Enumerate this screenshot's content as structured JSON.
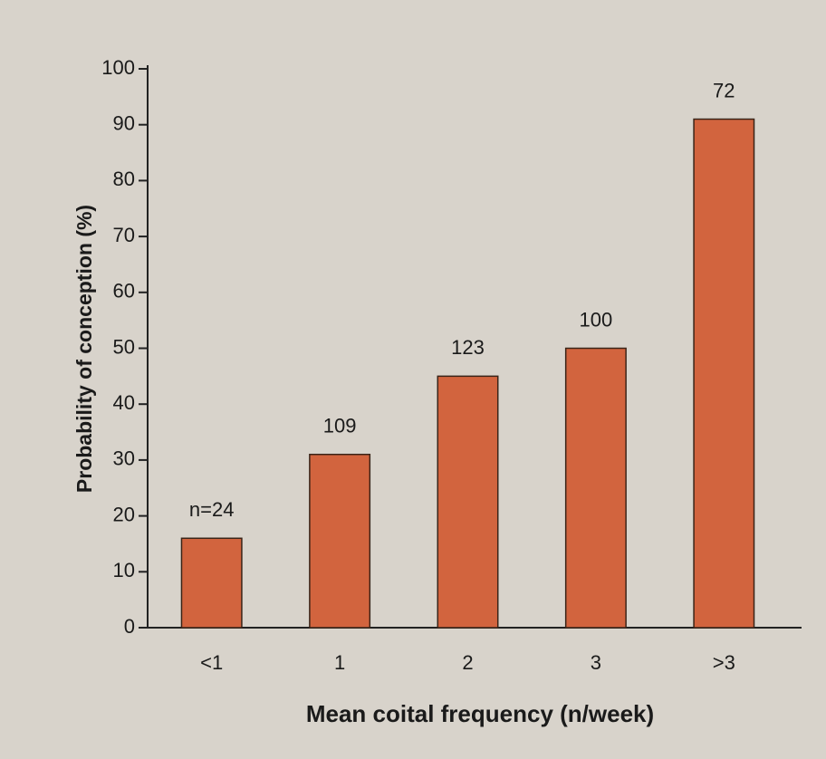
{
  "chart_data": {
    "type": "bar",
    "xlabel": "Mean coital frequency (n/week)",
    "ylabel": "Probability of conception (%)",
    "categories": [
      "<1",
      "1",
      "2",
      "3",
      ">3"
    ],
    "values": [
      16,
      31,
      45,
      50,
      91
    ],
    "bar_labels": [
      "n=24",
      "109",
      "123",
      "100",
      "72"
    ],
    "color": "#d2643e",
    "ylim": [
      0,
      100
    ],
    "yticks": [
      0,
      10,
      20,
      30,
      40,
      50,
      60,
      70,
      80,
      90,
      100
    ],
    "grid": false
  }
}
